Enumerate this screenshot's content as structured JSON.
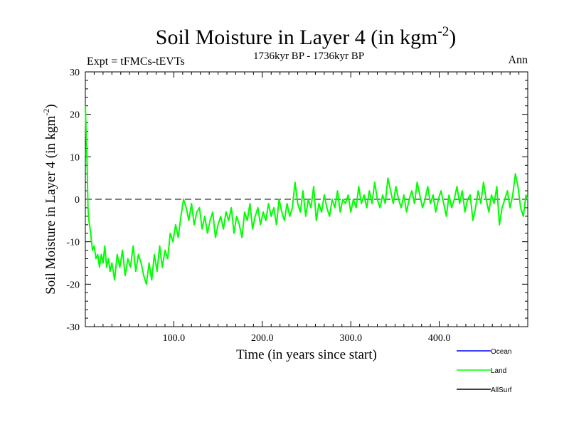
{
  "chart_data": {
    "type": "line",
    "title": "Soil Moisture in Layer 4 (in kgm",
    "title_sup": "-2",
    "title_close": ")",
    "subtitle": "1736kyr BP - 1736kyr BP",
    "left_label": "Expt = tFMCs-tEVTs",
    "right_label": "Ann",
    "xlabel": "Time (in years since start)",
    "ylabel": "Soil Moisture in Layer 4 (in kgm",
    "ylabel_sup": "-2",
    "ylabel_close": ")",
    "xlim": [
      0,
      500
    ],
    "ylim": [
      -30,
      30
    ],
    "x_ticks": [
      100,
      200,
      300,
      400
    ],
    "x_tick_labels": [
      "100.0",
      "200.0",
      "300.0",
      "400.0"
    ],
    "y_ticks": [
      -30,
      -20,
      -10,
      0,
      10,
      20,
      30
    ],
    "y_tick_labels": [
      "-30",
      "-20",
      "-10",
      "0",
      "10",
      "20",
      "30"
    ],
    "reference_line": 0,
    "legend": [
      {
        "name": "Ocean",
        "color": "#0000ff"
      },
      {
        "name": "Land",
        "color": "#00ff00"
      },
      {
        "name": "AllSurf",
        "color": "#000000"
      }
    ],
    "series": [
      {
        "name": "Land",
        "color": "#00ff00",
        "x": [
          0,
          1,
          2,
          3,
          4,
          6,
          8,
          10,
          12,
          14,
          16,
          18,
          20,
          22,
          24,
          26,
          28,
          30,
          33,
          36,
          39,
          42,
          45,
          48,
          51,
          54,
          57,
          60,
          63,
          66,
          69,
          72,
          75,
          78,
          81,
          84,
          87,
          90,
          93,
          96,
          99,
          102,
          105,
          108,
          111,
          114,
          117,
          120,
          123,
          126,
          129,
          132,
          135,
          138,
          141,
          144,
          147,
          150,
          153,
          156,
          159,
          162,
          165,
          168,
          171,
          174,
          177,
          180,
          183,
          186,
          189,
          192,
          195,
          198,
          201,
          204,
          207,
          210,
          213,
          216,
          219,
          222,
          225,
          228,
          231,
          234,
          237,
          240,
          243,
          246,
          249,
          252,
          255,
          258,
          261,
          264,
          267,
          270,
          273,
          276,
          279,
          282,
          285,
          288,
          291,
          294,
          297,
          300,
          303,
          306,
          309,
          312,
          315,
          318,
          321,
          324,
          327,
          330,
          333,
          336,
          339,
          342,
          345,
          348,
          351,
          354,
          357,
          360,
          363,
          366,
          369,
          372,
          375,
          378,
          381,
          384,
          387,
          390,
          393,
          396,
          399,
          402,
          405,
          408,
          411,
          414,
          417,
          420,
          423,
          426,
          429,
          432,
          435,
          438,
          441,
          444,
          447,
          450,
          453,
          456,
          459,
          462,
          465,
          468,
          471,
          474,
          477,
          480,
          483,
          486,
          489,
          492,
          495,
          498,
          500
        ],
        "values": [
          22,
          15,
          8,
          -2,
          -5,
          -8,
          -12,
          -11,
          -14,
          -13,
          -16,
          -13,
          -15,
          -11,
          -16,
          -14,
          -17,
          -15,
          -19,
          -13,
          -16,
          -12,
          -18,
          -14,
          -16,
          -11,
          -17,
          -13,
          -15,
          -18,
          -20,
          -15,
          -19,
          -13,
          -17,
          -11,
          -16,
          -12,
          -14,
          -8,
          -10,
          -6,
          -9,
          -4,
          0,
          -2,
          -5,
          -1,
          -6,
          -3,
          -2,
          -7,
          -4,
          -8,
          -5,
          -3,
          -9,
          -6,
          -4,
          -7,
          -3,
          -5,
          -2,
          -8,
          -4,
          -6,
          -9,
          -3,
          -5,
          -1,
          -7,
          -4,
          -2,
          -6,
          -3,
          -5,
          -1,
          -4,
          -2,
          -6,
          0,
          -3,
          -5,
          -1,
          -4,
          -2,
          4,
          -1,
          -3,
          2,
          -4,
          0,
          -2,
          3,
          -5,
          -1,
          -3,
          1,
          -2,
          -4,
          0,
          -2,
          2,
          -3,
          0,
          -1,
          1,
          -3,
          0,
          -2,
          3,
          -1,
          1,
          -2,
          2,
          -1,
          4,
          0,
          -2,
          1,
          -1,
          5,
          2,
          -1,
          3,
          0,
          -2,
          1,
          -3,
          0,
          2,
          -1,
          4,
          1,
          -2,
          0,
          3,
          -1,
          1,
          -3,
          0,
          2,
          -1,
          -4,
          1,
          -2,
          0,
          3,
          -1,
          2,
          -3,
          0,
          1,
          -5,
          -2,
          2,
          -1,
          4,
          0,
          -3,
          1,
          -1,
          3,
          -6,
          -2,
          0,
          2,
          -2,
          1,
          6,
          3,
          -2,
          -4,
          1,
          0
        ]
      }
    ]
  }
}
